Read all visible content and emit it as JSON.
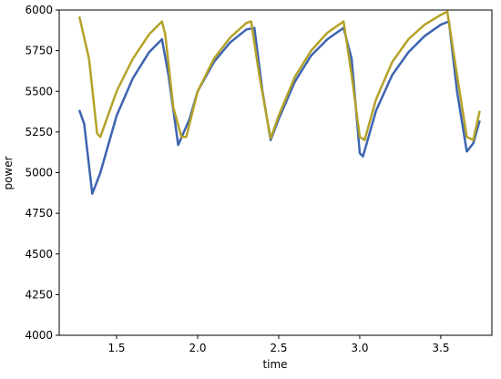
{
  "chart_data": {
    "type": "line",
    "x_label": "time",
    "y_label": "power",
    "xlim": [
      1.146,
      3.815
    ],
    "ylim": [
      4000,
      6000
    ],
    "xticks": [
      1.5,
      {
        "value": 2,
        "label": "2.0"
      },
      2.5,
      {
        "value": 3,
        "label": "3.0"
      },
      3.5
    ],
    "yticks": [
      4000,
      4250,
      4500,
      4750,
      5000,
      5250,
      5500,
      5750,
      6000
    ],
    "series": [
      {
        "color": "#3d64b0",
        "x": [
          1.27,
          1.3,
          1.35,
          1.4,
          1.5,
          1.6,
          1.7,
          1.78,
          1.82,
          1.88,
          1.95,
          2.0,
          2.1,
          2.2,
          2.3,
          2.35,
          2.4,
          2.45,
          2.5,
          2.6,
          2.7,
          2.8,
          2.9,
          2.95,
          3.0,
          3.02,
          3.1,
          3.2,
          3.3,
          3.4,
          3.5,
          3.55,
          3.6,
          3.66,
          3.7,
          3.74
        ],
        "values": [
          5385,
          5300,
          4870,
          5000,
          5350,
          5580,
          5740,
          5820,
          5600,
          5170,
          5330,
          5500,
          5680,
          5800,
          5880,
          5890,
          5500,
          5200,
          5330,
          5560,
          5720,
          5820,
          5890,
          5700,
          5120,
          5100,
          5380,
          5600,
          5740,
          5840,
          5910,
          5930,
          5500,
          5130,
          5180,
          5320
        ]
      },
      {
        "color": "#b4a228",
        "x": [
          1.27,
          1.33,
          1.38,
          1.4,
          1.5,
          1.6,
          1.7,
          1.78,
          1.8,
          1.85,
          1.9,
          1.93,
          2.0,
          2.1,
          2.2,
          2.3,
          2.33,
          2.38,
          2.45,
          2.5,
          2.6,
          2.7,
          2.8,
          2.9,
          2.95,
          3.0,
          3.03,
          3.1,
          3.2,
          3.3,
          3.4,
          3.5,
          3.54,
          3.6,
          3.66,
          3.7,
          3.74
        ],
        "values": [
          5960,
          5700,
          5240,
          5220,
          5500,
          5700,
          5850,
          5930,
          5850,
          5400,
          5220,
          5220,
          5500,
          5700,
          5830,
          5920,
          5930,
          5600,
          5210,
          5350,
          5590,
          5750,
          5860,
          5930,
          5600,
          5220,
          5200,
          5450,
          5680,
          5820,
          5910,
          5970,
          5990,
          5600,
          5220,
          5200,
          5380
        ]
      }
    ]
  }
}
